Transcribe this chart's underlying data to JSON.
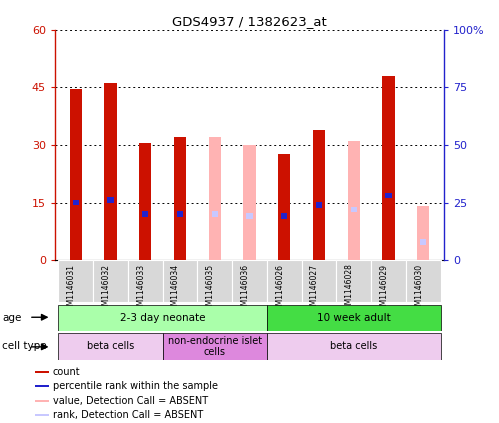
{
  "title": "GDS4937 / 1382623_at",
  "samples": [
    "GSM1146031",
    "GSM1146032",
    "GSM1146033",
    "GSM1146034",
    "GSM1146035",
    "GSM1146036",
    "GSM1146026",
    "GSM1146027",
    "GSM1146028",
    "GSM1146029",
    "GSM1146030"
  ],
  "count_values": [
    44.5,
    46,
    30.5,
    32,
    null,
    null,
    27.5,
    34,
    null,
    48,
    null
  ],
  "rank_values": [
    25,
    26,
    20,
    20,
    null,
    null,
    19,
    24,
    null,
    28,
    null
  ],
  "absent_value_values": [
    null,
    null,
    null,
    null,
    32,
    30,
    null,
    null,
    31,
    null,
    14
  ],
  "absent_rank_values": [
    null,
    null,
    null,
    null,
    20,
    19,
    null,
    null,
    22,
    null,
    8
  ],
  "ylim_left": [
    0,
    60
  ],
  "ylim_right": [
    0,
    100
  ],
  "yticks_left": [
    0,
    15,
    30,
    45,
    60
  ],
  "yticks_right": [
    0,
    25,
    50,
    75,
    100
  ],
  "ytick_labels_left": [
    "0",
    "15",
    "30",
    "45",
    "60"
  ],
  "ytick_labels_right": [
    "0",
    "25",
    "50",
    "75",
    "100%"
  ],
  "color_count": "#cc1100",
  "color_rank": "#2222cc",
  "color_absent_value": "#ffb3b3",
  "color_absent_rank": "#c8c8ff",
  "age_groups": [
    {
      "label": "2-3 day neonate",
      "start": 0,
      "end": 6,
      "color": "#aaffaa"
    },
    {
      "label": "10 week adult",
      "start": 6,
      "end": 11,
      "color": "#44dd44"
    }
  ],
  "cell_type_groups": [
    {
      "label": "beta cells",
      "start": 0,
      "end": 3,
      "color": "#eeccee"
    },
    {
      "label": "non-endocrine islet\ncells",
      "start": 3,
      "end": 6,
      "color": "#dd88dd"
    },
    {
      "label": "beta cells",
      "start": 6,
      "end": 11,
      "color": "#eeccee"
    }
  ],
  "bar_width": 0.35,
  "rank_bar_width": 0.18,
  "rank_bar_height": 1.5
}
